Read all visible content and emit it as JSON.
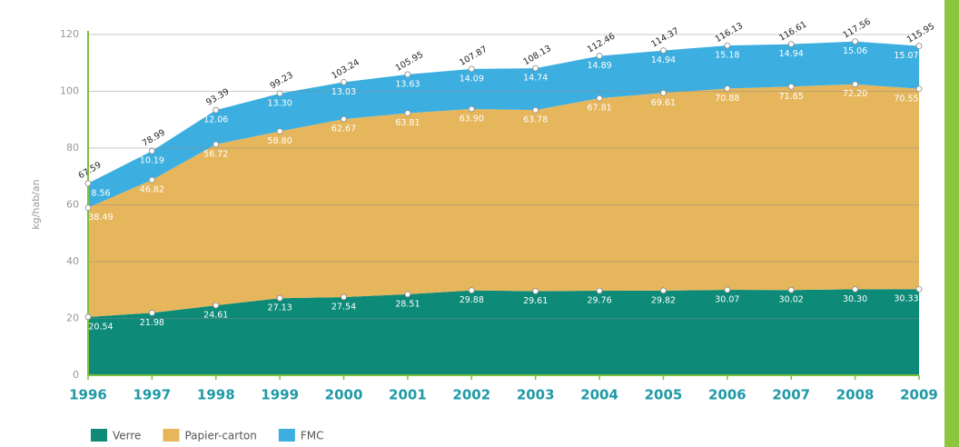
{
  "chart_data": {
    "type": "stacked-area",
    "y_label": "kg/hab/an",
    "categories": [
      "1996",
      "1997",
      "1998",
      "1999",
      "2000",
      "2001",
      "2002",
      "2003",
      "2004",
      "2005",
      "2006",
      "2007",
      "2008",
      "2009"
    ],
    "series": [
      {
        "name": "Verre",
        "color": "#0d8a78",
        "values": [
          20.54,
          21.98,
          24.61,
          27.13,
          27.54,
          28.51,
          29.88,
          29.61,
          29.76,
          29.82,
          30.07,
          30.02,
          30.3,
          30.33
        ],
        "value_labels": [
          "20.54",
          "21.98",
          "24.61",
          "27.13",
          "27.54",
          "28.51",
          "29.88",
          "29.61",
          "29.76",
          "29.82",
          "30.07",
          "30.02",
          "30.30",
          "30.33"
        ]
      },
      {
        "name": "Papier-carton",
        "color": "#e6b65c",
        "values": [
          38.49,
          46.82,
          56.72,
          58.8,
          62.67,
          63.81,
          63.9,
          63.78,
          67.81,
          69.61,
          70.88,
          71.65,
          72.2,
          70.55
        ],
        "value_labels": [
          "38.49",
          "46.82",
          "56.72",
          "58.80",
          "62.67",
          "63.81",
          "63.90",
          "63.78",
          "67.81",
          "69.61",
          "70.88",
          "71.65",
          "72.20",
          "70.55"
        ]
      },
      {
        "name": "FMC",
        "color": "#3caee0",
        "values": [
          8.56,
          10.19,
          12.06,
          13.3,
          13.03,
          13.63,
          14.09,
          14.74,
          14.89,
          14.94,
          15.18,
          14.94,
          15.06,
          15.07
        ],
        "value_labels": [
          "8.56",
          "10.19",
          "12.06",
          "13.30",
          "13.03",
          "13.63",
          "14.09",
          "14.74",
          "14.89",
          "14.94",
          "15.18",
          "14.94",
          "15.06",
          "15.07"
        ]
      }
    ],
    "totals": [
      67.59,
      78.99,
      93.39,
      99.23,
      103.24,
      105.95,
      107.87,
      108.13,
      112.46,
      114.37,
      116.13,
      116.61,
      117.56,
      115.95
    ],
    "ylim": [
      0,
      120
    ],
    "yticks": [
      0,
      20,
      40,
      60,
      80,
      100,
      120
    ],
    "grid": true
  }
}
